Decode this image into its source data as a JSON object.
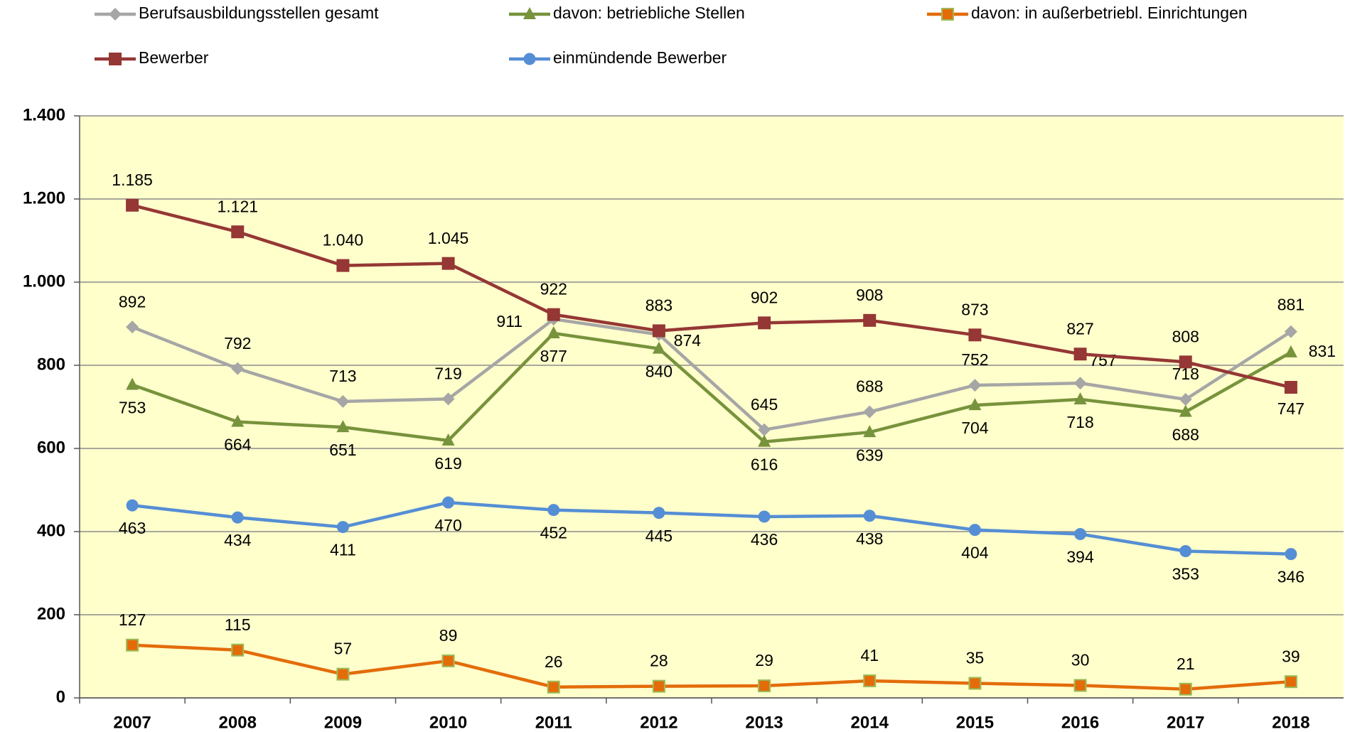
{
  "chart_data": {
    "type": "line",
    "categories": [
      "2007",
      "2008",
      "2009",
      "2010",
      "2011",
      "2012",
      "2013",
      "2014",
      "2015",
      "2016",
      "2017",
      "2018"
    ],
    "series": [
      {
        "name": "Berufsausbildungsstellen gesamt",
        "color": "#a6a6a6",
        "marker": "diamond",
        "values": [
          892,
          792,
          713,
          719,
          911,
          874,
          645,
          688,
          752,
          757,
          718,
          881
        ]
      },
      {
        "name": "davon: betriebliche Stellen",
        "color": "#77933c",
        "marker": "triangle",
        "values": [
          753,
          664,
          651,
          619,
          877,
          840,
          616,
          639,
          704,
          718,
          688,
          831
        ]
      },
      {
        "name": "davon: in außerbetriebl. Einrichtungen",
        "color": "#e36c09",
        "marker": "square",
        "values": [
          127,
          115,
          57,
          89,
          26,
          28,
          29,
          41,
          35,
          30,
          21,
          39
        ]
      },
      {
        "name": "Bewerber",
        "color": "#953735",
        "marker": "square",
        "values": [
          1185,
          1121,
          1040,
          1045,
          922,
          883,
          902,
          908,
          873,
          827,
          808,
          747
        ],
        "value_labels": [
          "1.185",
          "1.121",
          "1.040",
          "1.045",
          "922",
          "883",
          "902",
          "908",
          "873",
          "827",
          "808",
          "747"
        ]
      },
      {
        "name": "einmündende Bewerber",
        "color": "#558ed5",
        "marker": "circle",
        "values": [
          463,
          434,
          411,
          470,
          452,
          445,
          436,
          438,
          404,
          394,
          353,
          346
        ]
      }
    ],
    "ylim": [
      0,
      1400
    ],
    "yticks": [
      0,
      200,
      400,
      600,
      800,
      {
        "value": 1000,
        "label": "1.000"
      },
      {
        "value": 1200,
        "label": "1.200"
      },
      {
        "value": 1400,
        "label": "1.400"
      }
    ],
    "grid": true,
    "legend": "top",
    "plot_background": "#ffffcc"
  }
}
